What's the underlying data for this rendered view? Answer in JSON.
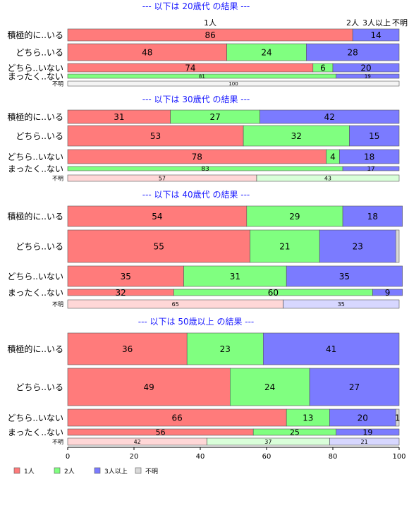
{
  "chart_data": {
    "type": "bar",
    "orientation": "horizontal",
    "stacked": true,
    "xlim": [
      0,
      100
    ],
    "xticks": [
      "0",
      "20",
      "40",
      "60",
      "80",
      "100"
    ],
    "series_names": [
      "1人",
      "2人",
      "3人以上",
      "不明"
    ],
    "legend_position": "bottom-left",
    "colors": {
      "s1": "#ff7b7b",
      "s2": "#80ff80",
      "s3": "#7b7bff",
      "s4": "#d9d9d9"
    },
    "top_annotations": [
      "1人",
      "2人",
      "3人以上",
      "不明"
    ],
    "groups": [
      {
        "title": "--- 以下は 20歳代 の結果 ---",
        "rows": [
          {
            "label": "積極的に..いる",
            "values": [
              86,
              0,
              14,
              0
            ],
            "labels": [
              "86",
              "",
              "14",
              ""
            ]
          },
          {
            "label": "どちら..いる",
            "values": [
              48,
              24,
              28,
              0
            ],
            "labels": [
              "48",
              "24",
              "28",
              ""
            ]
          },
          {
            "label": "どちら..いない",
            "values": [
              74,
              6,
              20,
              0
            ],
            "labels": [
              "74",
              "6",
              "20",
              ""
            ]
          },
          {
            "label": "まったく..ない",
            "values": [
              0,
              81,
              19,
              0
            ],
            "labels": [
              "",
              "81",
              "19",
              ""
            ]
          },
          {
            "label": "不明",
            "values": [
              0,
              0,
              0,
              100
            ],
            "labels": [
              "",
              "",
              "",
              "100"
            ]
          }
        ]
      },
      {
        "title": "--- 以下は 30歳代 の結果 ---",
        "rows": [
          {
            "label": "積極的に..いる",
            "values": [
              31,
              27,
              42,
              0
            ],
            "labels": [
              "31",
              "27",
              "42",
              ""
            ]
          },
          {
            "label": "どちら..いる",
            "values": [
              53,
              32,
              15,
              0
            ],
            "labels": [
              "53",
              "32",
              "15",
              ""
            ]
          },
          {
            "label": "どちら..いない",
            "values": [
              78,
              4,
              18,
              0
            ],
            "labels": [
              "78",
              "4",
              "18",
              ""
            ]
          },
          {
            "label": "まったく..ない",
            "values": [
              0,
              83,
              17,
              0
            ],
            "labels": [
              "",
              "83",
              "17",
              ""
            ]
          },
          {
            "label": "不明",
            "values": [
              57,
              43,
              0,
              0
            ],
            "labels": [
              "57",
              "43",
              "",
              ""
            ]
          }
        ]
      },
      {
        "title": "--- 以下は 40歳代 の結果 ---",
        "rows": [
          {
            "label": "積極的に..いる",
            "values": [
              54,
              29,
              18,
              0
            ],
            "labels": [
              "54",
              "29",
              "18",
              ""
            ]
          },
          {
            "label": "どちら..いる",
            "values": [
              55,
              21,
              23,
              1
            ],
            "labels": [
              "55",
              "21",
              "23",
              ""
            ]
          },
          {
            "label": "どちら..いない",
            "values": [
              35,
              31,
              35,
              0
            ],
            "labels": [
              "35",
              "31",
              "35",
              ""
            ]
          },
          {
            "label": "まったく..ない",
            "values": [
              32,
              60,
              9,
              0
            ],
            "labels": [
              "32",
              "60",
              "9",
              ""
            ]
          },
          {
            "label": "不明",
            "values": [
              65,
              0,
              35,
              0
            ],
            "labels": [
              "65",
              "",
              "35",
              ""
            ]
          }
        ]
      },
      {
        "title": "--- 以下は 50歳以上 の結果 ---",
        "rows": [
          {
            "label": "積極的に..いる",
            "values": [
              36,
              23,
              41,
              0
            ],
            "labels": [
              "36",
              "23",
              "41",
              ""
            ]
          },
          {
            "label": "どちら..いる",
            "values": [
              49,
              24,
              27,
              0
            ],
            "labels": [
              "49",
              "24",
              "27",
              ""
            ]
          },
          {
            "label": "どちら..いない",
            "values": [
              66,
              13,
              20,
              1
            ],
            "labels": [
              "66",
              "13",
              "20",
              "1"
            ]
          },
          {
            "label": "まったく..ない",
            "values": [
              56,
              25,
              19,
              0
            ],
            "labels": [
              "56",
              "25",
              "19",
              ""
            ]
          },
          {
            "label": "不明",
            "values": [
              42,
              37,
              21,
              0
            ],
            "labels": [
              "42",
              "37",
              "21",
              ""
            ]
          }
        ]
      }
    ]
  }
}
